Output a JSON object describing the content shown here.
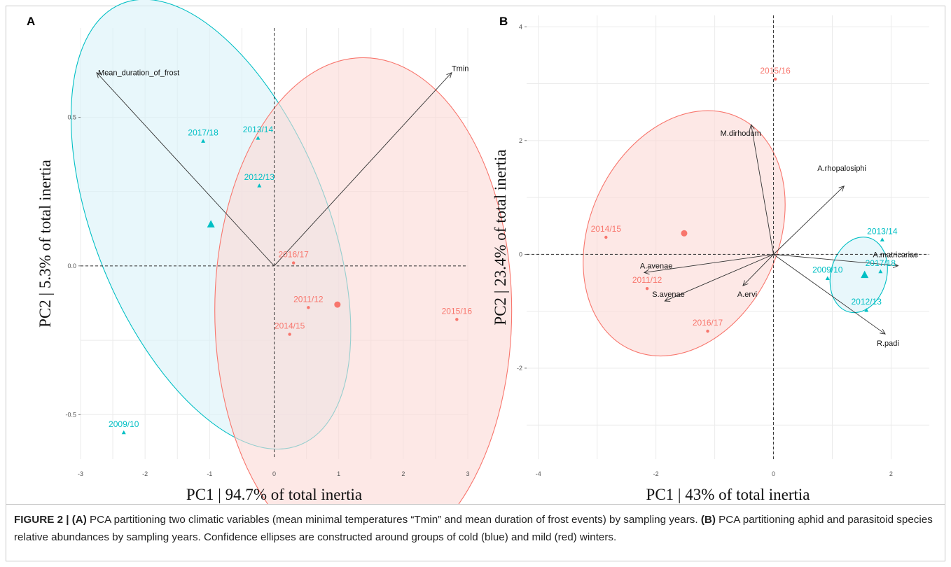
{
  "caption": {
    "figure_label": "FIGURE 2 | ",
    "part_a_label": "(A)",
    "part_a_text": " PCA partitioning two climatic variables (mean minimal temperatures “Tmin” and mean duration of frost events) by sampling years. ",
    "part_b_label": "(B)",
    "part_b_text": " PCA partitioning aphid and parasitoid species relative abundances by sampling years. Confidence ellipses are constructed around groups of cold (blue) and mild (red) winters."
  },
  "colors": {
    "cold": "#00bfc4",
    "mild": "#f8766d",
    "cold_fill": "#d9f2f8",
    "mild_fill": "#fcd9d6",
    "grid": "#ebebeb",
    "arrow": "#333333"
  },
  "chart_data": [
    {
      "type": "scatter",
      "panel_label": "A",
      "xlabel": "PC1 | 94.7% of total inertia",
      "ylabel": "PC2 | 5.3% of total inertia",
      "xlim": [
        -3.0,
        3.0
      ],
      "ylim": [
        -0.65,
        0.8
      ],
      "xticks": [
        -3,
        -2,
        -1,
        0,
        1,
        2,
        3
      ],
      "yticks": [
        -0.5,
        0.0,
        0.5
      ],
      "ytick_labels": [
        "-0.5",
        "0.0",
        "0.5"
      ],
      "grid": true,
      "points": [
        {
          "label": "2017/18",
          "x": -1.1,
          "y": 0.42,
          "group": "cold"
        },
        {
          "label": "2013/14",
          "x": -0.25,
          "y": 0.43,
          "group": "cold"
        },
        {
          "label": "2012/13",
          "x": -0.23,
          "y": 0.27,
          "group": "cold"
        },
        {
          "label": "2009/10",
          "x": -2.33,
          "y": -0.56,
          "group": "cold"
        },
        {
          "label": "2016/17",
          "x": 0.3,
          "y": 0.01,
          "group": "mild"
        },
        {
          "label": "2011/12",
          "x": 0.53,
          "y": -0.14,
          "group": "mild"
        },
        {
          "label": "2014/15",
          "x": 0.24,
          "y": -0.23,
          "group": "mild"
        },
        {
          "label": "2015/16",
          "x": 2.83,
          "y": -0.18,
          "group": "mild"
        }
      ],
      "centroids": [
        {
          "group": "cold",
          "x": -0.98,
          "y": 0.14
        },
        {
          "group": "mild",
          "x": 0.98,
          "y": -0.13
        }
      ],
      "ellipses": [
        {
          "group": "cold",
          "cx": -0.98,
          "cy": 0.14,
          "rx": 3.6,
          "ry": 1.6,
          "angle": -22
        },
        {
          "group": "mild",
          "cx": 1.38,
          "cy": -0.15,
          "rx": 4.6,
          "ry": 1.7,
          "angle": 0
        }
      ],
      "vectors": [
        {
          "label": "Mean_duration_of_frost",
          "x": -2.75,
          "y": 0.65
        },
        {
          "label": "Tmin",
          "x": 2.75,
          "y": 0.65
        }
      ]
    },
    {
      "type": "scatter",
      "panel_label": "B",
      "xlabel": "PC1 | 43% of total inertia",
      "ylabel": "PC2 | 23.4% of total inertia",
      "xlim": [
        -4.2,
        2.65
      ],
      "ylim": [
        -3.6,
        4.2
      ],
      "xticks": [
        -4,
        -2,
        0,
        2
      ],
      "yticks": [
        -2,
        0,
        2,
        4
      ],
      "ytick_labels": [
        "-2",
        "0",
        "2",
        "4"
      ],
      "grid": true,
      "points": [
        {
          "label": "2013/14",
          "x": 1.85,
          "y": 0.26,
          "group": "cold"
        },
        {
          "label": "2009/10",
          "x": 0.92,
          "y": -0.42,
          "group": "cold"
        },
        {
          "label": "2017/18",
          "x": 1.82,
          "y": -0.3,
          "group": "cold"
        },
        {
          "label": "2012/13",
          "x": 1.58,
          "y": -0.98,
          "group": "cold"
        },
        {
          "label": "2015/16",
          "x": 0.03,
          "y": 3.08,
          "group": "mild"
        },
        {
          "label": "2014/15",
          "x": -2.85,
          "y": 0.3,
          "group": "mild"
        },
        {
          "label": "2011/12",
          "x": -2.15,
          "y": -0.6,
          "group": "mild"
        },
        {
          "label": "2016/17",
          "x": -1.12,
          "y": -1.35,
          "group": "mild"
        }
      ],
      "centroids": [
        {
          "group": "cold",
          "x": 1.55,
          "y": -0.36
        },
        {
          "group": "mild",
          "x": -1.52,
          "y": 0.37
        }
      ],
      "ellipses": [
        {
          "group": "cold",
          "cx": 1.45,
          "cy": -0.36,
          "rx": 0.95,
          "ry": 1.35,
          "angle": 15
        },
        {
          "group": "mild",
          "cx": -1.52,
          "cy": 0.37,
          "rx": 3.2,
          "ry": 4.5,
          "angle": 25
        }
      ],
      "vectors": [
        {
          "label": "M.dirhodum",
          "x": -0.38,
          "y": 2.28
        },
        {
          "label": "A.rhopalosiphi",
          "x": 1.2,
          "y": 1.2
        },
        {
          "label": "A.matricariae",
          "x": 2.12,
          "y": -0.2
        },
        {
          "label": "R.padi",
          "x": 1.9,
          "y": -1.4
        },
        {
          "label": "A.avenae",
          "x": -2.2,
          "y": -0.32
        },
        {
          "label": "S.avenae",
          "x": -1.85,
          "y": -0.82
        },
        {
          "label": "A.ervi",
          "x": -0.52,
          "y": -0.55
        }
      ]
    }
  ]
}
